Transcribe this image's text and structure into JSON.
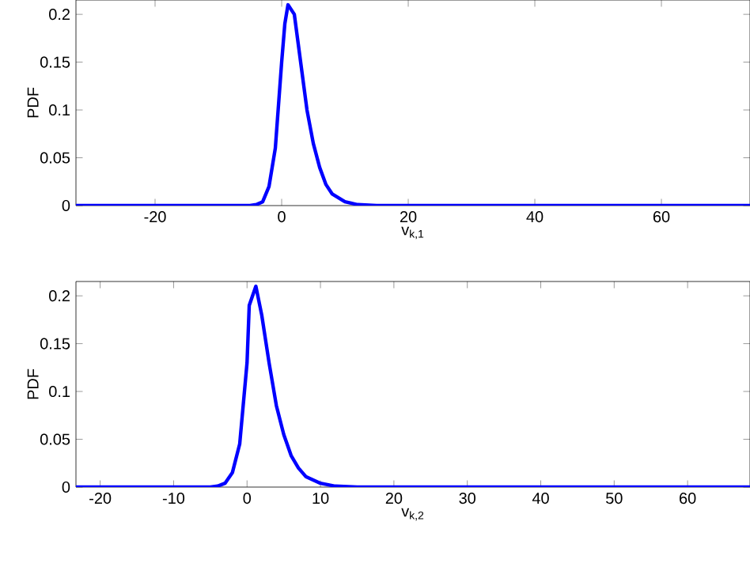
{
  "chart_data": [
    {
      "type": "line",
      "xlabel": "v$_{k,1}$",
      "ylabel": "PDF",
      "xlim": [
        -32.5,
        74
      ],
      "ylim": [
        0,
        0.215
      ],
      "xticks": [
        -20,
        0,
        20,
        40,
        60
      ],
      "yticks": [
        0,
        0.05,
        0.1,
        0.15,
        0.2
      ],
      "grid": false,
      "marker": "none",
      "line_style": "solid",
      "series": [
        {
          "color": "#0000ff",
          "x": [
            -32.5,
            -10,
            -5,
            -4,
            -3,
            -2,
            -1,
            0,
            0.5,
            1,
            2,
            3,
            4,
            5,
            6,
            7,
            8,
            10,
            12,
            15,
            20,
            74
          ],
          "values": [
            0,
            0,
            0,
            0.001,
            0.004,
            0.02,
            0.06,
            0.15,
            0.19,
            0.21,
            0.2,
            0.15,
            0.1,
            0.065,
            0.04,
            0.022,
            0.012,
            0.004,
            0.001,
            0,
            0,
            0
          ]
        }
      ]
    },
    {
      "type": "line",
      "xlabel": "v$_{k,2}$",
      "ylabel": "PDF",
      "xlim": [
        -23.3,
        68.5
      ],
      "ylim": [
        0,
        0.215
      ],
      "xticks": [
        -20,
        -10,
        0,
        10,
        20,
        30,
        40,
        50,
        60
      ],
      "yticks": [
        0,
        0.05,
        0.1,
        0.15,
        0.2
      ],
      "grid": false,
      "marker": "none",
      "line_style": "solid",
      "series": [
        {
          "color": "#0000ff",
          "x": [
            -23.3,
            -10,
            -5,
            -4,
            -3,
            -2,
            -1,
            0,
            0.3,
            1.2,
            2,
            3,
            4,
            5,
            6,
            7,
            8,
            10,
            12,
            15,
            20,
            68.5
          ],
          "values": [
            0,
            0,
            0,
            0.001,
            0.004,
            0.015,
            0.045,
            0.13,
            0.19,
            0.21,
            0.18,
            0.13,
            0.085,
            0.055,
            0.033,
            0.02,
            0.011,
            0.004,
            0.001,
            0,
            0,
            0
          ]
        }
      ]
    }
  ]
}
